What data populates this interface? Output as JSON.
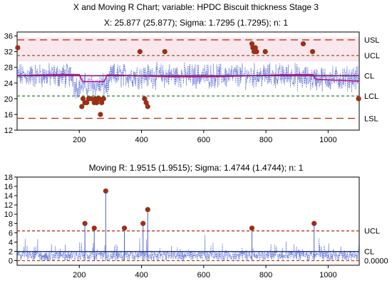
{
  "header": {
    "title": "X and Moving R Chart; variable:  HPDC Biscuit thickness Stage 3",
    "x_subtitle": "X: 25.877 (25.877); Sigma: 1.7295 (1.7295); n: 1",
    "r_subtitle": "Moving R: 1.9515 (1.9515); Sigma: 1.4744 (1.4744); n: 1"
  },
  "chart_data": [
    {
      "type": "line",
      "name": "X chart",
      "xlim": [
        0,
        1100
      ],
      "ylim": [
        12,
        37
      ],
      "x_ticks": [
        200,
        400,
        600,
        800,
        1000
      ],
      "y_ticks": [
        12,
        16,
        20,
        24,
        28,
        32,
        36
      ],
      "limits": [
        {
          "label": "USL",
          "value": 35.0,
          "color": "#b83a1e"
        },
        {
          "label": "UCL",
          "value": 31.0,
          "color": "#8a5a1e"
        },
        {
          "label": "CL",
          "value": 25.877,
          "color": "#7b1f7b"
        },
        {
          "label": "LCL",
          "value": 20.7,
          "color": "#2e7d32"
        },
        {
          "label": "LSL",
          "value": 15.0,
          "color": "#b83a1e"
        }
      ],
      "out_of_control_points": [
        {
          "x": 2,
          "y": 33
        },
        {
          "x": 208,
          "y": 18
        },
        {
          "x": 212,
          "y": 20
        },
        {
          "x": 218,
          "y": 19
        },
        {
          "x": 224,
          "y": 19
        },
        {
          "x": 230,
          "y": 20
        },
        {
          "x": 238,
          "y": 20
        },
        {
          "x": 248,
          "y": 19
        },
        {
          "x": 252,
          "y": 20
        },
        {
          "x": 256,
          "y": 19
        },
        {
          "x": 260,
          "y": 20
        },
        {
          "x": 264,
          "y": 20
        },
        {
          "x": 268,
          "y": 16
        },
        {
          "x": 272,
          "y": 19
        },
        {
          "x": 278,
          "y": 20
        },
        {
          "x": 395,
          "y": 32
        },
        {
          "x": 410,
          "y": 20
        },
        {
          "x": 415,
          "y": 19
        },
        {
          "x": 420,
          "y": 18
        },
        {
          "x": 475,
          "y": 32
        },
        {
          "x": 755,
          "y": 34
        },
        {
          "x": 758,
          "y": 33
        },
        {
          "x": 762,
          "y": 32
        },
        {
          "x": 766,
          "y": 33
        },
        {
          "x": 770,
          "y": 32
        },
        {
          "x": 798,
          "y": 32
        },
        {
          "x": 920,
          "y": 34
        },
        {
          "x": 950,
          "y": 32
        },
        {
          "x": 1098,
          "y": 20
        }
      ]
    },
    {
      "type": "line",
      "name": "Moving R chart",
      "xlim": [
        0,
        1100
      ],
      "ylim": [
        -1,
        18
      ],
      "x_ticks": [
        200,
        400,
        600,
        800,
        1000
      ],
      "y_ticks": [
        0,
        2,
        4,
        6,
        8,
        10,
        12,
        14,
        16,
        18
      ],
      "limits": [
        {
          "label": "UCL",
          "value": 6.4,
          "color": "#b83a1e"
        },
        {
          "label": "CL",
          "value": 1.9515,
          "color": "#1e3a8a"
        },
        {
          "label": "0.0000",
          "value": 0,
          "color": "#b83a1e"
        }
      ],
      "out_of_control_points": [
        {
          "x": 218,
          "y": 8
        },
        {
          "x": 248,
          "y": 7
        },
        {
          "x": 285,
          "y": 15
        },
        {
          "x": 345,
          "y": 7
        },
        {
          "x": 405,
          "y": 8
        },
        {
          "x": 420,
          "y": 11
        },
        {
          "x": 755,
          "y": 7
        },
        {
          "x": 955,
          "y": 8
        }
      ]
    }
  ],
  "colors": {
    "series": "#4a5fd0",
    "point_fill": "#b22222",
    "point_stroke": "#6b4a00",
    "spec_band": "#f4c8d6",
    "frame": "#000000"
  }
}
